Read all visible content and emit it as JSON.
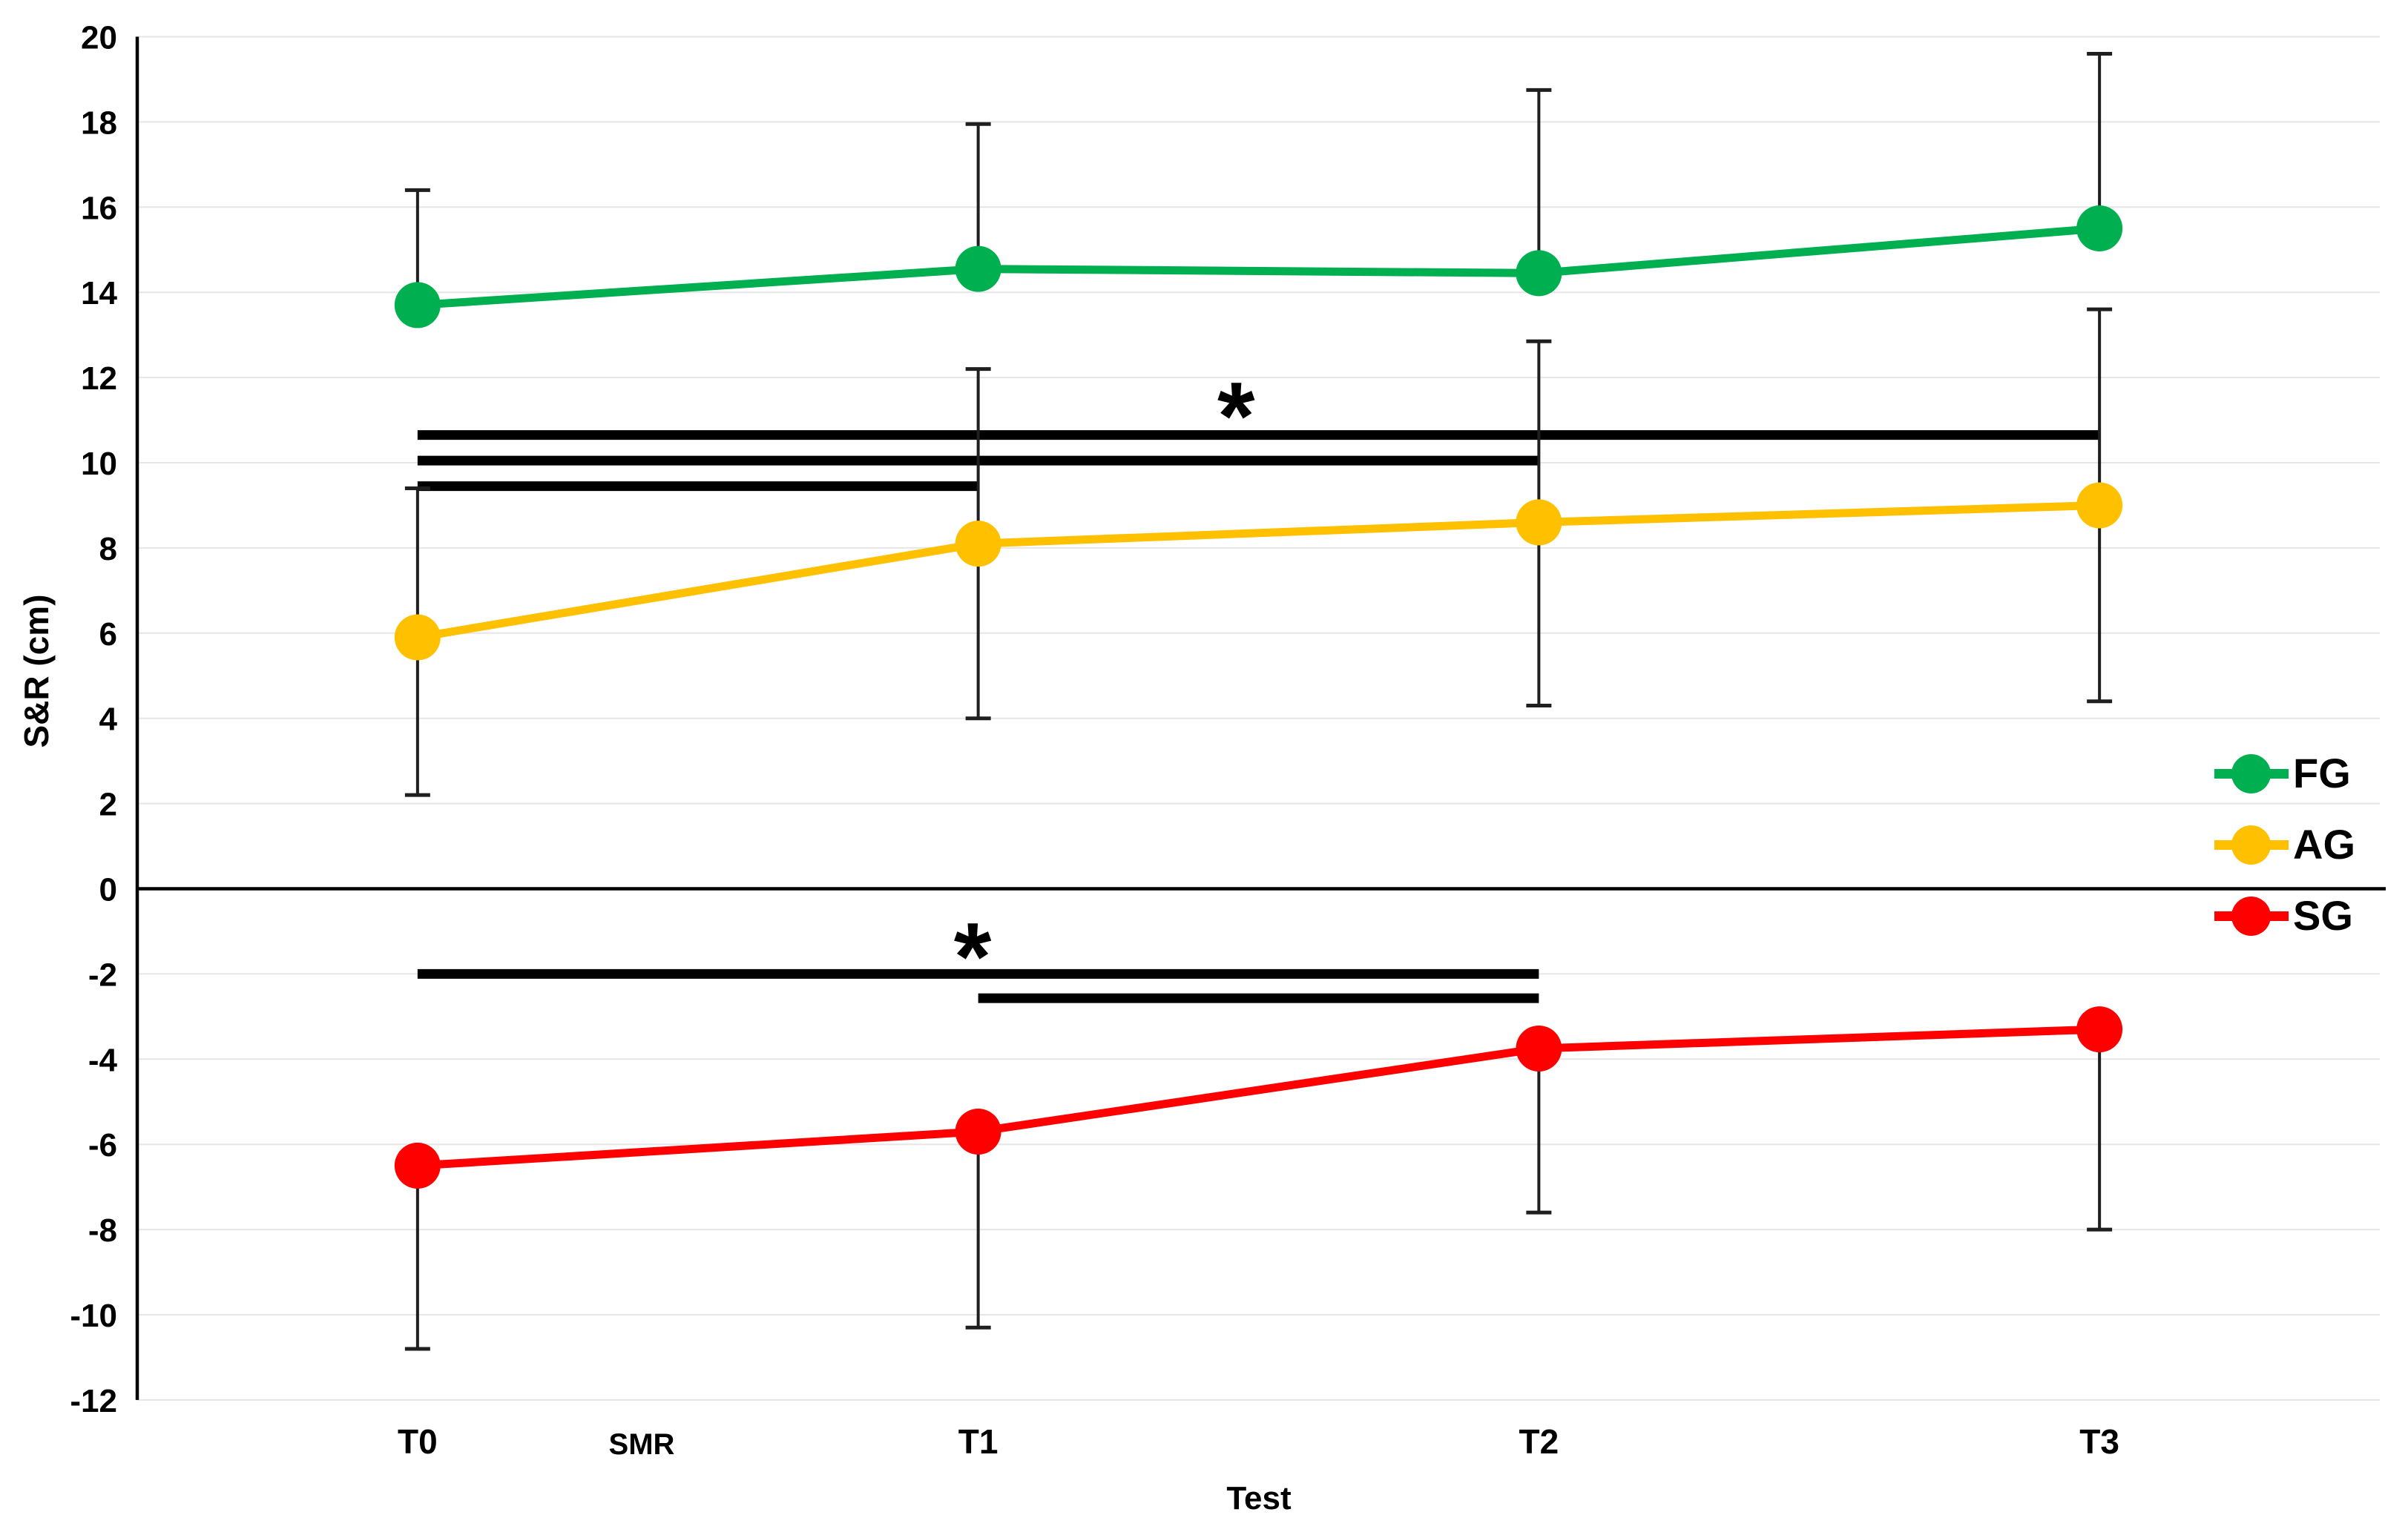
{
  "y_axis": {
    "label": "S&R (cm)",
    "min": -12,
    "max": 20,
    "step": 2,
    "tick_labels": [
      "20",
      "18",
      "16",
      "14",
      "12",
      "10",
      "8",
      "6",
      "4",
      "2",
      "0",
      "-2",
      "-4",
      "-6",
      "-8",
      "-10",
      "-12"
    ]
  },
  "x_axis": {
    "label": "Test",
    "categories": [
      "T0",
      "T1",
      "T2",
      "T3"
    ],
    "annotation": "SMR"
  },
  "chart_data": {
    "type": "line",
    "title": "",
    "xlabel": "Test",
    "ylabel": "S&R (cm)",
    "ylim": [
      -12,
      20
    ],
    "grid": true,
    "legend_position": "right",
    "categories": [
      "T0",
      "T1",
      "T2",
      "T3"
    ],
    "series": [
      {
        "name": "FG",
        "color": "#00B050",
        "values": [
          13.7,
          14.55,
          14.45,
          15.5
        ],
        "error_up": [
          16.4,
          17.95,
          18.75,
          19.6
        ],
        "error_down": [
          null,
          null,
          null,
          null
        ]
      },
      {
        "name": "AG",
        "color": "#FFC000",
        "values": [
          5.9,
          8.1,
          8.6,
          9.0
        ],
        "error_up": [
          9.4,
          12.2,
          12.85,
          13.6
        ],
        "error_down": [
          2.2,
          4.0,
          4.3,
          4.4
        ]
      },
      {
        "name": "SG",
        "color": "#FF0000",
        "values": [
          -6.5,
          -5.7,
          -3.75,
          -3.3
        ],
        "error_up": [
          null,
          null,
          null,
          null
        ],
        "error_down": [
          -10.8,
          -10.3,
          -7.6,
          -8.0
        ]
      }
    ],
    "significance_bars": [
      {
        "from_index": 0,
        "to_index": 3,
        "value": 10.65
      },
      {
        "from_index": 0,
        "to_index": 2,
        "value": 10.05
      },
      {
        "from_index": 0,
        "to_index": 1,
        "value": 9.45
      },
      {
        "from_index": 0,
        "to_index": 2,
        "value": -2.0
      },
      {
        "from_index": 1,
        "to_index": 2,
        "value": -2.57
      }
    ],
    "asterisks": [
      {
        "symbol": "*",
        "x_index": 1.46,
        "value": 11.45
      },
      {
        "symbol": "*",
        "x_index": 0.99,
        "value": -1.24
      }
    ]
  },
  "legend": {
    "entries": [
      {
        "label": "FG",
        "color": "#00B050"
      },
      {
        "label": "AG",
        "color": "#FFC000"
      },
      {
        "label": "SG",
        "color": "#FF0000"
      }
    ]
  },
  "colors": {
    "gridline": "#E6E6E6",
    "axis": "#000000",
    "error_bar": "#1F1F1F",
    "significance": "#000000"
  }
}
